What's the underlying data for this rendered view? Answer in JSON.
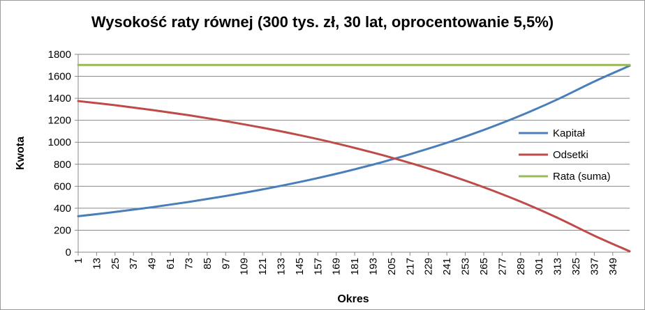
{
  "chart_data": {
    "type": "line",
    "title": "Wysokość raty równej (300 tys. zł, 30 lat, oprocentowanie 5,5%)",
    "xlabel": "Okres",
    "ylabel": "Kwota",
    "ylim": [
      0,
      1800
    ],
    "yticks": [
      0,
      200,
      400,
      600,
      800,
      1000,
      1200,
      1400,
      1600,
      1800
    ],
    "xlim": [
      1,
      360
    ],
    "xticks": [
      1,
      13,
      25,
      37,
      49,
      61,
      73,
      85,
      97,
      109,
      121,
      133,
      145,
      157,
      169,
      181,
      193,
      205,
      217,
      229,
      241,
      253,
      265,
      277,
      289,
      301,
      313,
      325,
      337,
      349
    ],
    "grid": "horizontal",
    "legend_position": "right",
    "series": [
      {
        "name": "Kapitał",
        "color": "#4a7ebb",
        "x": [
          1,
          25,
          49,
          73,
          97,
          121,
          145,
          169,
          193,
          205,
          217,
          241,
          265,
          289,
          313,
          337,
          360
        ],
        "values": [
          327,
          366,
          409,
          457,
          511,
          571,
          638,
          713,
          797,
          843,
          891,
          995,
          1112,
          1243,
          1390,
          1553,
          1696
        ]
      },
      {
        "name": "Odsetki",
        "color": "#be4b48",
        "x": [
          1,
          25,
          49,
          73,
          97,
          121,
          145,
          169,
          193,
          205,
          217,
          241,
          265,
          289,
          313,
          337,
          360
        ],
        "values": [
          1375,
          1337,
          1294,
          1246,
          1192,
          1132,
          1065,
          990,
          906,
          860,
          812,
          708,
          591,
          460,
          313,
          150,
          8
        ]
      },
      {
        "name": "Rata (suma)",
        "color": "#98b954",
        "x": [
          1,
          360
        ],
        "values": [
          1703,
          1703
        ]
      }
    ]
  }
}
